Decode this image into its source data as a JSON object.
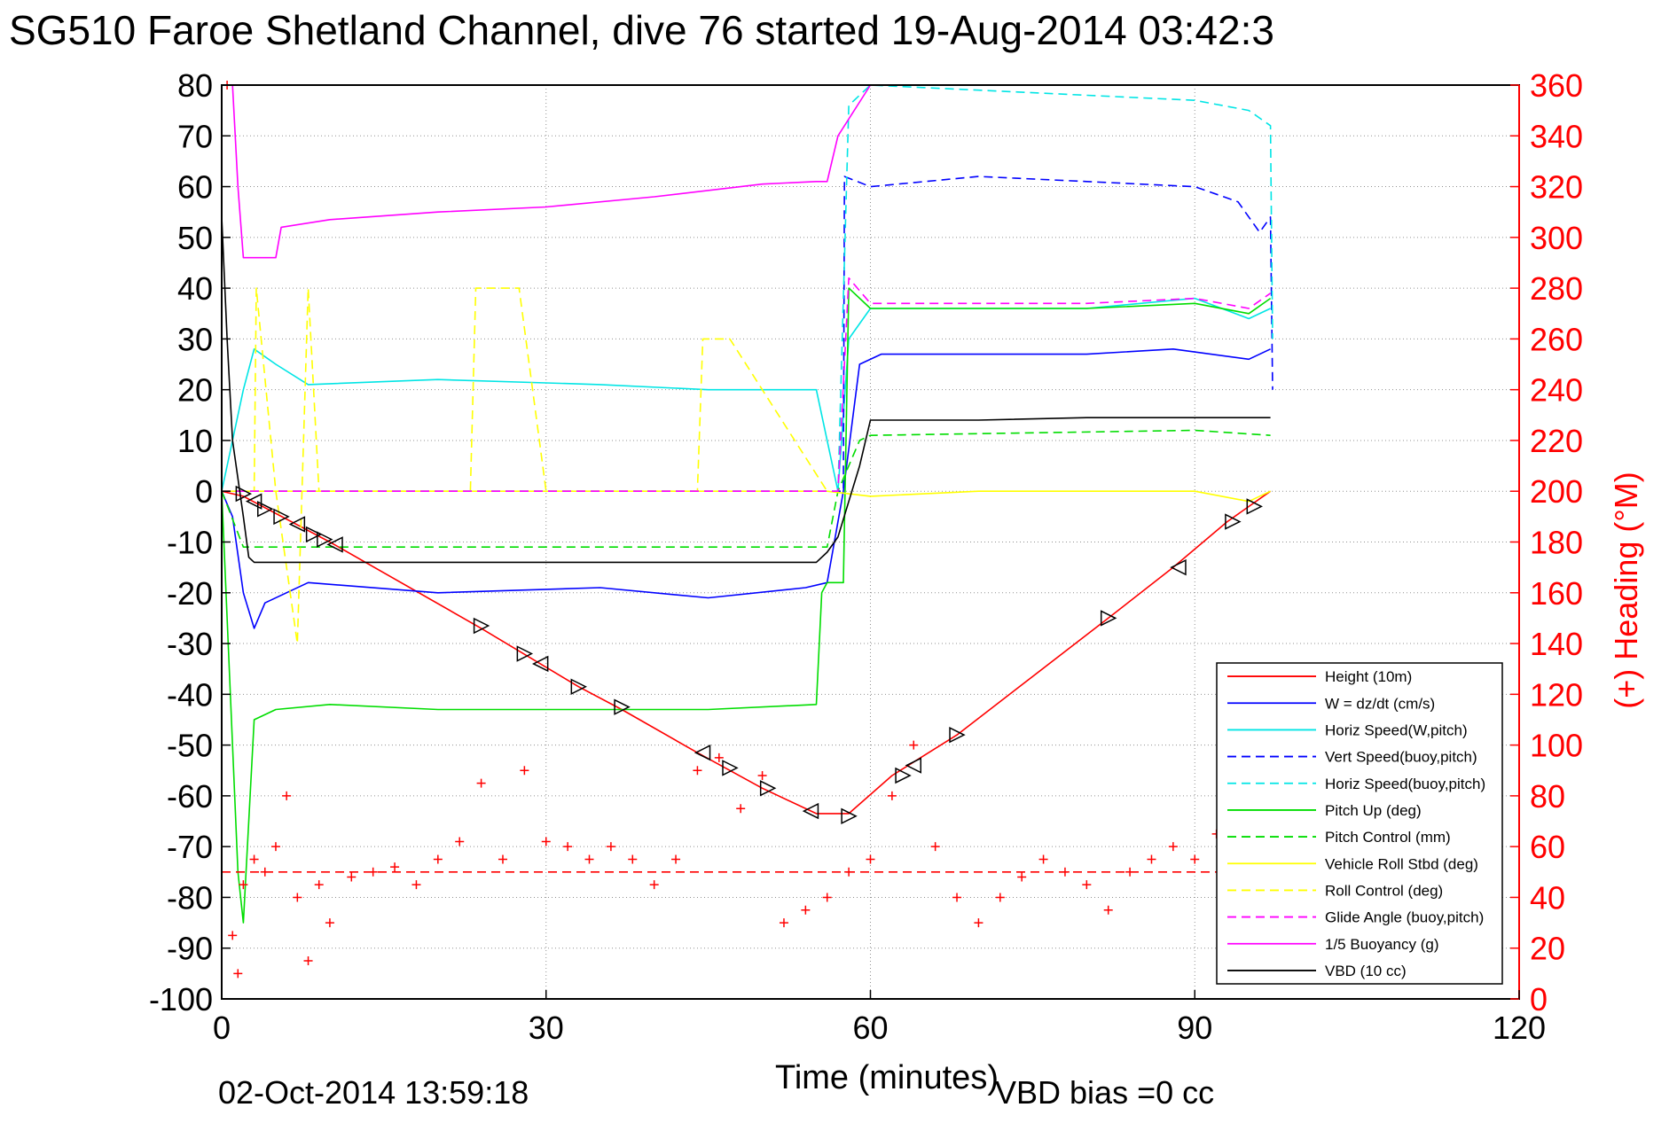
{
  "chart_data": {
    "type": "line",
    "title": "SG510 Faroe Shetland Channel, dive 76 started 19-Aug-2014 03:42:3",
    "xlabel": "Time (minutes)",
    "ylabel": "",
    "y2label": "(+) Heading (°M)",
    "footer_left": "02-Oct-2014 13:59:18",
    "footer_right": "VBD bias =0 cc",
    "xlim": [
      0,
      120
    ],
    "ylim": [
      -100,
      80
    ],
    "y2lim": [
      0,
      360
    ],
    "xticks": [
      "0",
      "30",
      "60",
      "90",
      "120"
    ],
    "yticks": [
      "80",
      "70",
      "60",
      "50",
      "40",
      "30",
      "20",
      "10",
      "0",
      "-10",
      "-20",
      "-30",
      "-40",
      "-50",
      "-60",
      "-70",
      "-80",
      "-90",
      "-100"
    ],
    "y2ticks": [
      "360",
      "340",
      "320",
      "300",
      "280",
      "260",
      "240",
      "220",
      "200",
      "180",
      "160",
      "140",
      "120",
      "100",
      "80",
      "60",
      "40",
      "20",
      "0"
    ],
    "grid": true,
    "legend_position": "bottom-right",
    "colors": {
      "axis_right": "#ff0000",
      "height": "#ff0000",
      "w": "#0000ff",
      "horiz_w": "#00e5e5",
      "vert_buoy": "#0000ff",
      "horiz_buoy": "#00e5e5",
      "pitch_up": "#00dd00",
      "pitch_ctrl": "#00dd00",
      "roll": "#ffff00",
      "roll_ctrl": "#ffff00",
      "glide": "#ff00ff",
      "buoyancy": "#ff00ff",
      "vbd": "#000000"
    },
    "series": [
      {
        "name": "Height (10m)",
        "style": "solid",
        "color": "#ff0000",
        "x": [
          0,
          2,
          10,
          24,
          33,
          37,
          44,
          50,
          55,
          58,
          62,
          68,
          82,
          88,
          93,
          97
        ],
        "y": [
          0,
          -1,
          -10,
          -27,
          -38.5,
          -43,
          -51.5,
          -58.5,
          -63.5,
          -63.5,
          -56,
          -48,
          -25,
          -15,
          -6,
          0
        ]
      },
      {
        "name": "W = dz/dt (cm/s)",
        "style": "solid",
        "color": "#0000ff",
        "x": [
          0,
          1,
          2,
          3,
          4,
          8,
          20,
          35,
          45,
          54,
          56,
          57.5,
          59,
          61,
          70,
          80,
          88,
          95,
          97
        ],
        "y": [
          0,
          -5,
          -20,
          -27,
          -22,
          -18,
          -20,
          -19,
          -21,
          -19,
          -18,
          0,
          25,
          27,
          27,
          27,
          28,
          26,
          28
        ]
      },
      {
        "name": "Horiz Speed(W,pitch)",
        "style": "solid",
        "color": "#00e5e5",
        "x": [
          0,
          1,
          2,
          3,
          5,
          8,
          20,
          35,
          45,
          55,
          56,
          57,
          58,
          60,
          70,
          80,
          90,
          95,
          97
        ],
        "y": [
          0,
          10,
          20,
          28,
          25,
          21,
          22,
          21,
          20,
          20,
          10,
          0,
          30,
          36,
          36,
          36,
          38,
          34,
          36
        ]
      },
      {
        "name": "Vert Speed(buoy,pitch)",
        "style": "dashed",
        "color": "#0000ff",
        "x": [
          0,
          57.5,
          57.6,
          60,
          70,
          80,
          90,
          94,
          96,
          97,
          97.2
        ],
        "y": [
          0,
          0,
          62,
          60,
          62,
          61,
          60,
          57,
          51,
          54,
          20
        ]
      },
      {
        "name": "Horiz Speed(buoy,pitch)",
        "style": "dashed",
        "color": "#00e5e5",
        "x": [
          0,
          57,
          58,
          60,
          70,
          80,
          90,
          95,
          97,
          97.2
        ],
        "y": [
          0,
          0,
          76,
          80,
          79,
          78,
          77,
          75,
          72,
          30
        ]
      },
      {
        "name": "Pitch Up (deg)",
        "style": "solid",
        "color": "#00dd00",
        "x": [
          0,
          1,
          1.5,
          2,
          3,
          5,
          10,
          20,
          35,
          45,
          55,
          55.5,
          56,
          57.5,
          58,
          60,
          70,
          80,
          90,
          95,
          97
        ],
        "y": [
          0,
          -50,
          -75,
          -85,
          -45,
          -43,
          -42,
          -43,
          -43,
          -43,
          -42,
          -20,
          -18,
          -18,
          40,
          36,
          36,
          36,
          37,
          35,
          38
        ]
      },
      {
        "name": "Pitch Control (mm)",
        "style": "dashed",
        "color": "#00dd00",
        "x": [
          0,
          2,
          30,
          56,
          57,
          59,
          60,
          90,
          97
        ],
        "y": [
          0,
          -11,
          -11,
          -11,
          0,
          10,
          11,
          12,
          11
        ]
      },
      {
        "name": "Vehicle Roll Stbd (deg)",
        "style": "solid",
        "color": "#ffff00",
        "x": [
          0,
          10,
          20,
          30,
          40,
          50,
          56,
          60,
          70,
          80,
          90,
          95,
          97
        ],
        "y": [
          0,
          0,
          0,
          0,
          0,
          0,
          0,
          -1,
          0,
          0,
          0,
          -2,
          0
        ]
      },
      {
        "name": "Roll Control (deg)",
        "style": "dashed",
        "color": "#ffff00",
        "x": [
          0,
          3,
          3.2,
          5,
          7,
          8,
          9,
          23,
          23.5,
          27.5,
          30,
          44,
          44.5,
          47,
          56
        ],
        "y": [
          0,
          0,
          40,
          0,
          -30,
          40,
          0,
          0,
          40,
          40,
          0,
          0,
          30,
          30,
          0
        ]
      },
      {
        "name": "Glide Angle (buoy,pitch)",
        "style": "dashed",
        "color": "#ff00ff",
        "x": [
          0,
          57,
          58,
          60,
          70,
          80,
          90,
          95,
          97
        ],
        "y": [
          0,
          0,
          42,
          37,
          37,
          37,
          38,
          36,
          39
        ]
      },
      {
        "name": "1/5 Buoyancy (g)",
        "style": "solid",
        "color": "#ff00ff",
        "x": [
          1,
          1.5,
          2,
          5,
          5.5,
          10,
          20,
          30,
          40,
          50,
          55,
          56,
          57,
          60
        ],
        "y": [
          80,
          60,
          46,
          46,
          52,
          53.5,
          55,
          56,
          58,
          60.5,
          61,
          61,
          70,
          80
        ]
      },
      {
        "name": "VBD (10 cc)",
        "style": "solid",
        "color": "#000000",
        "x": [
          0,
          0.5,
          1,
          2,
          2.5,
          3,
          20,
          40,
          55,
          56,
          57,
          58,
          59,
          60,
          70,
          80,
          90,
          97
        ],
        "y": [
          54,
          30,
          10,
          -5,
          -13,
          -14,
          -14,
          -14,
          -14,
          -12,
          -9,
          -2,
          5,
          14,
          14,
          14.5,
          14.5,
          14.5
        ]
      },
      {
        "name": "",
        "style": "dashed",
        "color": "#ff0000",
        "axis": "right",
        "x": [
          0,
          97
        ],
        "y": [
          50,
          50
        ]
      },
      {
        "name": "",
        "style": "markers",
        "marker": "+",
        "color": "#ff0000",
        "axis": "right",
        "x": [
          0.5,
          1,
          1.5,
          2,
          3,
          4,
          5,
          6,
          7,
          8,
          9,
          10,
          12,
          14,
          16,
          18,
          20,
          22,
          24,
          26,
          28,
          30,
          32,
          34,
          36,
          38,
          40,
          42,
          44,
          46,
          48,
          50,
          52,
          54,
          56,
          58,
          60,
          62,
          64,
          66,
          68,
          70,
          72,
          74,
          76,
          78,
          80,
          82,
          84,
          86,
          88,
          90,
          92,
          93
        ],
        "y": [
          360,
          25,
          10,
          45,
          55,
          50,
          60,
          80,
          40,
          15,
          45,
          30,
          48,
          50,
          52,
          45,
          55,
          62,
          85,
          55,
          90,
          62,
          60,
          55,
          60,
          55,
          45,
          55,
          90,
          95,
          75,
          88,
          30,
          35,
          40,
          50,
          55,
          80,
          100,
          60,
          40,
          30,
          40,
          48,
          55,
          50,
          45,
          35,
          50,
          55,
          60,
          55,
          65,
          75
        ]
      }
    ],
    "direction_markers": [
      {
        "x": 2,
        "y": -0.5
      },
      {
        "x": 3,
        "y": -2
      },
      {
        "x": 4,
        "y": -3.5
      },
      {
        "x": 5.5,
        "y": -5
      },
      {
        "x": 7,
        "y": -6.5
      },
      {
        "x": 8.5,
        "y": -8.5
      },
      {
        "x": 9.5,
        "y": -9.5
      },
      {
        "x": 10.5,
        "y": -10.5
      },
      {
        "x": 24,
        "y": -26.5
      },
      {
        "x": 28,
        "y": -32
      },
      {
        "x": 29.5,
        "y": -34
      },
      {
        "x": 33,
        "y": -38.5
      },
      {
        "x": 37,
        "y": -42.5
      },
      {
        "x": 44.5,
        "y": -51.5
      },
      {
        "x": 47,
        "y": -54.5
      },
      {
        "x": 50.5,
        "y": -58.5
      },
      {
        "x": 54.5,
        "y": -63
      },
      {
        "x": 58,
        "y": -64
      },
      {
        "x": 63,
        "y": -56
      },
      {
        "x": 64,
        "y": -54
      },
      {
        "x": 68,
        "y": -48
      },
      {
        "x": 82,
        "y": -25
      },
      {
        "x": 88.5,
        "y": -15
      },
      {
        "x": 93.5,
        "y": -6
      },
      {
        "x": 95.5,
        "y": -3
      }
    ]
  }
}
